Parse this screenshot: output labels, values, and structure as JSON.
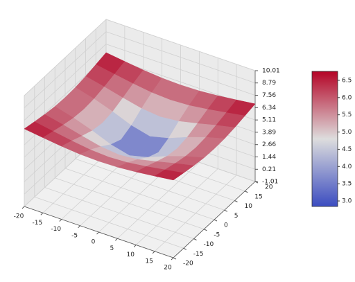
{
  "chart_data": {
    "type": "surface",
    "x": [
      -20,
      -15,
      -10,
      -5,
      0,
      5,
      10,
      15,
      20
    ],
    "y": [
      -20,
      -15,
      -10,
      -5,
      0,
      5,
      10,
      15,
      20
    ],
    "z": [
      [
        6.71,
        6.47,
        6.25,
        6.09,
        6.04,
        6.09,
        6.25,
        6.47,
        6.71
      ],
      [
        6.47,
        6.15,
        5.84,
        5.59,
        5.49,
        5.59,
        5.84,
        6.15,
        6.47
      ],
      [
        6.25,
        5.84,
        5.38,
        4.96,
        4.77,
        4.96,
        5.38,
        5.84,
        6.25
      ],
      [
        6.09,
        5.59,
        4.96,
        4.22,
        3.76,
        4.22,
        4.96,
        5.59,
        6.09
      ],
      [
        6.04,
        5.49,
        4.77,
        3.76,
        2.89,
        3.76,
        4.77,
        5.49,
        6.04
      ],
      [
        6.09,
        5.59,
        4.96,
        4.22,
        3.76,
        4.22,
        4.96,
        5.59,
        6.09
      ],
      [
        6.25,
        5.84,
        5.38,
        4.96,
        4.77,
        4.96,
        5.38,
        5.84,
        6.25
      ],
      [
        6.47,
        6.15,
        5.84,
        5.59,
        5.49,
        5.59,
        5.84,
        6.15,
        6.47
      ],
      [
        6.71,
        6.47,
        6.25,
        6.09,
        6.04,
        6.09,
        6.25,
        6.47,
        6.71
      ]
    ],
    "xlim": [
      -20,
      20
    ],
    "ylim": [
      -20,
      20
    ],
    "zlim": [
      -1.01,
      10.01
    ],
    "xticks": [
      -20,
      -15,
      -10,
      -5,
      0,
      5,
      10,
      15,
      20
    ],
    "yticks": [
      -20,
      -15,
      -10,
      -5,
      0,
      5,
      10,
      15,
      20
    ],
    "zticks": [
      -1.01,
      0.21,
      1.44,
      2.66,
      3.89,
      5.11,
      6.34,
      7.56,
      8.79,
      10.01
    ],
    "colormap": [
      "#3b4cc0",
      "#dddddd",
      "#b40426"
    ],
    "clim": [
      2.84,
      6.76
    ],
    "colorbar_ticks": [
      {
        "value": 3,
        "label": "3.0"
      },
      3.5,
      {
        "value": 4,
        "label": "4.0"
      },
      4.5,
      {
        "value": 5,
        "label": "5.0"
      },
      5.5,
      {
        "value": 6,
        "label": "6.0"
      },
      6.5
    ],
    "grid": true
  }
}
